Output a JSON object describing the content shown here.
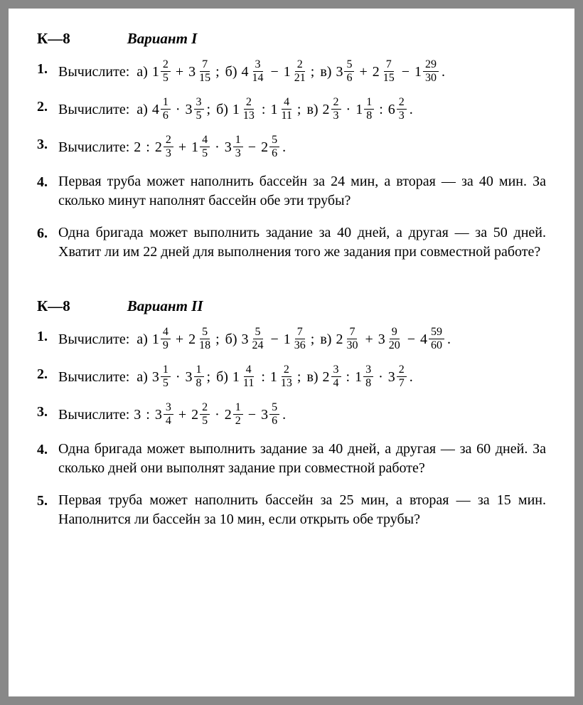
{
  "section1": {
    "k_label": "К—8",
    "variant": "Вариант I",
    "problems": [
      {
        "num": "1.",
        "prompt": "Вычислите:",
        "parts": [
          {
            "label": "а)",
            "expr": [
              {
                "t": "mixed",
                "w": "1",
                "n": "2",
                "d": "5"
              },
              {
                "t": "op",
                "v": "+"
              },
              {
                "t": "mixed",
                "w": "3",
                "n": "7",
                "d": "15"
              }
            ],
            "end": ";"
          },
          {
            "label": "б)",
            "expr": [
              {
                "t": "mixed",
                "w": "4",
                "n": "3",
                "d": "14"
              },
              {
                "t": "op",
                "v": "−"
              },
              {
                "t": "mixed",
                "w": "1",
                "n": "2",
                "d": "21"
              }
            ],
            "end": ";"
          },
          {
            "label": "в)",
            "expr": [
              {
                "t": "mixed",
                "w": "3",
                "n": "5",
                "d": "6"
              },
              {
                "t": "op",
                "v": "+"
              },
              {
                "t": "mixed",
                "w": "2",
                "n": "7",
                "d": "15"
              },
              {
                "t": "op",
                "v": "−"
              },
              {
                "t": "mixed",
                "w": "1",
                "n": "29",
                "d": "30"
              }
            ],
            "end": "."
          }
        ]
      },
      {
        "num": "2.",
        "prompt": "Вычислите:",
        "parts": [
          {
            "label": "а)",
            "expr": [
              {
                "t": "mixed",
                "w": "4",
                "n": "1",
                "d": "6"
              },
              {
                "t": "op",
                "v": "·"
              },
              {
                "t": "mixed",
                "w": "3",
                "n": "3",
                "d": "5"
              }
            ],
            "end": ";  "
          },
          {
            "label": "б)",
            "expr": [
              {
                "t": "mixed",
                "w": "1",
                "n": "2",
                "d": "13"
              },
              {
                "t": "op",
                "v": ":"
              },
              {
                "t": "mixed",
                "w": "1",
                "n": "4",
                "d": "11"
              }
            ],
            "end": ";  "
          },
          {
            "label": "в)",
            "expr": [
              {
                "t": "mixed",
                "w": "2",
                "n": "2",
                "d": "3"
              },
              {
                "t": "op",
                "v": "·"
              },
              {
                "t": "mixed",
                "w": "1",
                "n": "1",
                "d": "8"
              },
              {
                "t": "op",
                "v": ":"
              },
              {
                "t": "mixed",
                "w": "6",
                "n": "2",
                "d": "3"
              }
            ],
            "end": "."
          }
        ]
      },
      {
        "num": "3.",
        "prompt": "Вычислите:",
        "parts": [
          {
            "label": "",
            "expr": [
              {
                "t": "plain",
                "v": "2"
              },
              {
                "t": "op",
                "v": ":"
              },
              {
                "t": "mixed",
                "w": "2",
                "n": "2",
                "d": "3"
              },
              {
                "t": "op",
                "v": "+"
              },
              {
                "t": "mixed",
                "w": "1",
                "n": "4",
                "d": "5"
              },
              {
                "t": "op",
                "v": "·"
              },
              {
                "t": "mixed",
                "w": "3",
                "n": "1",
                "d": "3"
              },
              {
                "t": "op",
                "v": "−"
              },
              {
                "t": "mixed",
                "w": "2",
                "n": "5",
                "d": "6"
              }
            ],
            "end": "."
          }
        ]
      },
      {
        "num": "4.",
        "word": "Первая труба может наполнить бассейн за 24 мин, а вторая — за 40 мин. За сколько минут наполнят бассейн обе эти трубы?"
      },
      {
        "num": "6.",
        "word": "Одна бригада может выполнить задание за 40 дней, а другая — за 50 дней. Хватит ли им 22 дней для выполнения того же задания при совместной работе?"
      }
    ]
  },
  "section2": {
    "k_label": "К—8",
    "variant": "Вариант II",
    "problems": [
      {
        "num": "1.",
        "prompt": "Вычислите:",
        "parts": [
          {
            "label": "а)",
            "expr": [
              {
                "t": "mixed",
                "w": "1",
                "n": "4",
                "d": "9"
              },
              {
                "t": "op",
                "v": "+"
              },
              {
                "t": "mixed",
                "w": "2",
                "n": "5",
                "d": "18"
              }
            ],
            "end": ";"
          },
          {
            "label": "б)",
            "expr": [
              {
                "t": "mixed",
                "w": "3",
                "n": "5",
                "d": "24"
              },
              {
                "t": "op",
                "v": "−"
              },
              {
                "t": "mixed",
                "w": "1",
                "n": "7",
                "d": "36"
              }
            ],
            "end": ";"
          },
          {
            "label": "в)",
            "expr": [
              {
                "t": "mixed",
                "w": "2",
                "n": "7",
                "d": "30"
              },
              {
                "t": "op",
                "v": "+"
              },
              {
                "t": "mixed",
                "w": "3",
                "n": "9",
                "d": "20"
              },
              {
                "t": "op",
                "v": "−"
              },
              {
                "t": "mixed",
                "w": "4",
                "n": "59",
                "d": "60"
              }
            ],
            "end": "."
          }
        ]
      },
      {
        "num": "2.",
        "prompt": "Вычислите:",
        "parts": [
          {
            "label": "а)",
            "expr": [
              {
                "t": "mixed",
                "w": "3",
                "n": "1",
                "d": "5"
              },
              {
                "t": "op",
                "v": "·"
              },
              {
                "t": "mixed",
                "w": "3",
                "n": "1",
                "d": "8"
              }
            ],
            "end": ";  "
          },
          {
            "label": "б)",
            "expr": [
              {
                "t": "mixed",
                "w": "1",
                "n": "4",
                "d": "11"
              },
              {
                "t": "op",
                "v": ":"
              },
              {
                "t": "mixed",
                "w": "1",
                "n": "2",
                "d": "13"
              }
            ],
            "end": ";  "
          },
          {
            "label": "в)",
            "expr": [
              {
                "t": "mixed",
                "w": "2",
                "n": "3",
                "d": "4"
              },
              {
                "t": "op",
                "v": ":"
              },
              {
                "t": "mixed",
                "w": "1",
                "n": "3",
                "d": "8"
              },
              {
                "t": "op",
                "v": "·"
              },
              {
                "t": "mixed",
                "w": "3",
                "n": "2",
                "d": "7"
              }
            ],
            "end": "."
          }
        ]
      },
      {
        "num": "3.",
        "prompt": "Вычислите:",
        "parts": [
          {
            "label": "",
            "expr": [
              {
                "t": "plain",
                "v": "3"
              },
              {
                "t": "op",
                "v": ":"
              },
              {
                "t": "mixed",
                "w": "3",
                "n": "3",
                "d": "4"
              },
              {
                "t": "op",
                "v": "+"
              },
              {
                "t": "mixed",
                "w": "2",
                "n": "2",
                "d": "5"
              },
              {
                "t": "op",
                "v": "·"
              },
              {
                "t": "mixed",
                "w": "2",
                "n": "1",
                "d": "2"
              },
              {
                "t": "op",
                "v": "−"
              },
              {
                "t": "mixed",
                "w": "3",
                "n": "5",
                "d": "6"
              }
            ],
            "end": "."
          }
        ]
      },
      {
        "num": "4.",
        "word": "Одна бригада может выполнить задание за 40 дней, а другая — за 60 дней. За сколько дней они выполнят задание при совместной работе?"
      },
      {
        "num": "5.",
        "word": "Первая труба может наполнить бассейн за 25 мин, а вторая — за 15 мин. Наполнится ли бассейн за 10 мин, если открыть обе трубы?"
      }
    ]
  }
}
